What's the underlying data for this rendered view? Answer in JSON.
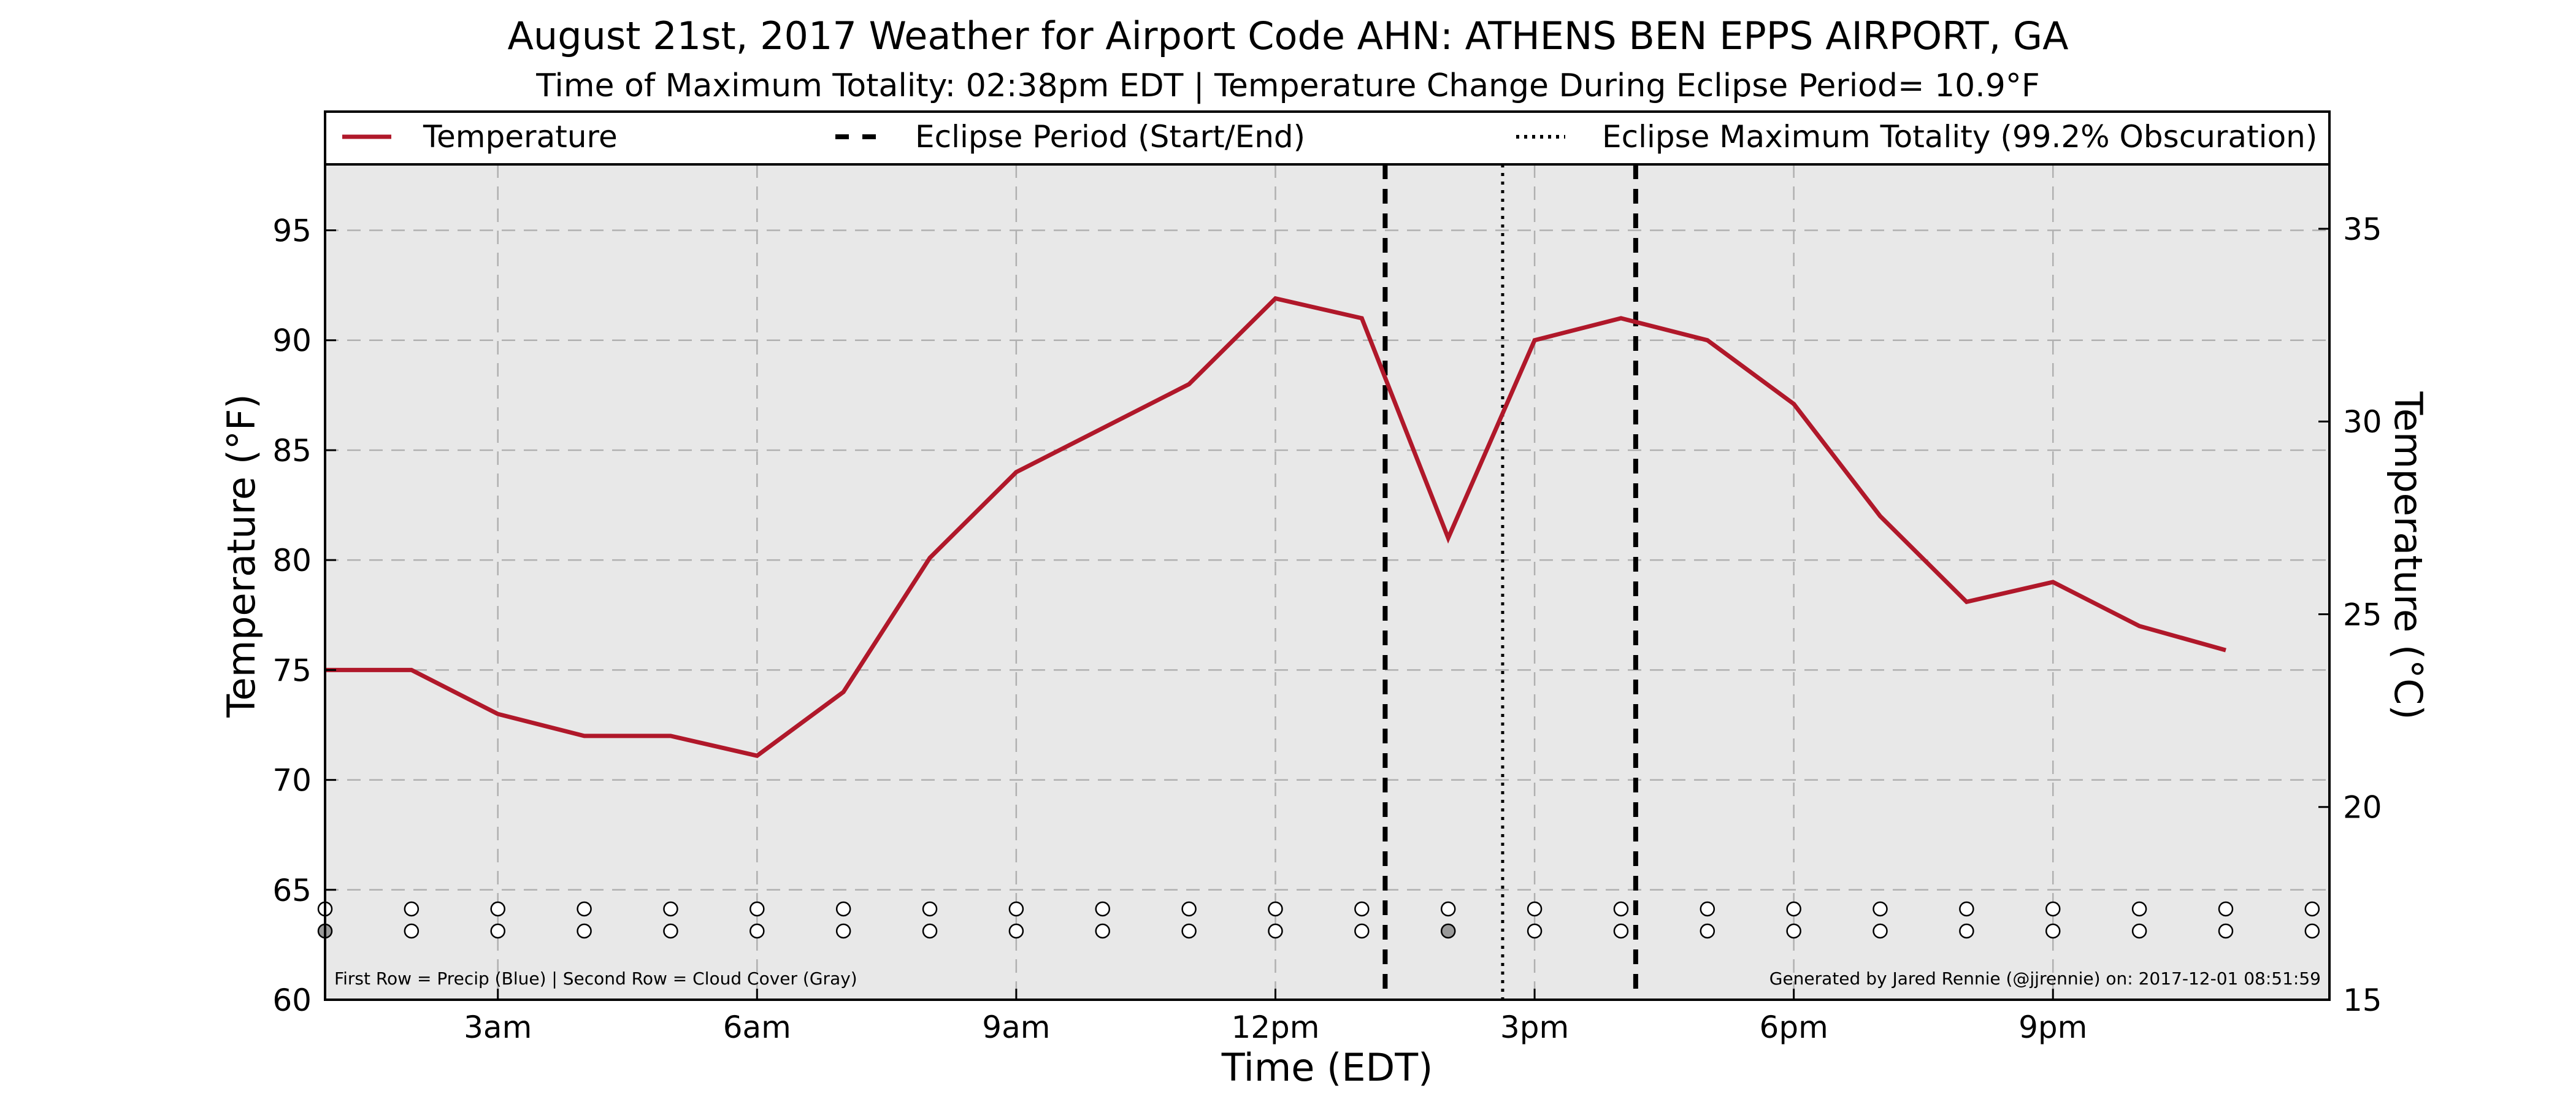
{
  "title": "August 21st, 2017 Weather for Airport Code AHN: ATHENS BEN EPPS AIRPORT, GA",
  "subtitle": "Time of Maximum Totality: 02:38pm EDT | Temperature Change During Eclipse Period= 10.9°F",
  "legend": {
    "temperature": "Temperature",
    "eclipse_period": "Eclipse Period (Start/End)",
    "eclipse_max": "Eclipse Maximum Totality (99.2% Obscuration)"
  },
  "footnote_left": "First Row = Precip (Blue) | Second Row = Cloud Cover (Gray)",
  "footnote_right": "Generated by Jared Rennie (@jjrennie) on: 2017-12-01 08:51:59",
  "colors": {
    "temperature_line": "#b0182a",
    "plot_background": "#e8e8e8",
    "grid": "#b0b0b0",
    "cloud_filled": "#999999",
    "marker_empty": "#ffffff"
  },
  "chart_data": {
    "type": "line",
    "title": "August 21st, 2017 Weather for Airport Code AHN: ATHENS BEN EPPS AIRPORT, GA",
    "xlabel": "Time (EDT)",
    "ylabel": "Temperature (°F)",
    "ylabel_right": "Temperature (°C)",
    "xlim": [
      1.0,
      24.2
    ],
    "ylim": [
      60,
      98
    ],
    "ylim_right": [
      15,
      36.67
    ],
    "x_ticks": [
      3,
      6,
      9,
      12,
      15,
      18,
      21
    ],
    "x_tick_labels": [
      "3am",
      "6am",
      "9am",
      "12pm",
      "3pm",
      "6pm",
      "9pm"
    ],
    "y_ticks": [
      60,
      65,
      70,
      75,
      80,
      85,
      90,
      95
    ],
    "y_ticks_right": [
      15,
      20,
      25,
      30,
      35
    ],
    "grid": true,
    "legend_position": "top",
    "series": [
      {
        "name": "Temperature",
        "x": [
          1.0,
          2.0,
          3.0,
          4.0,
          5.0,
          6.0,
          7.0,
          8.0,
          9.0,
          10.0,
          11.0,
          12.0,
          13.0,
          14.0,
          15.0,
          16.0,
          17.0,
          18.0,
          19.0,
          20.0,
          21.0,
          22.0,
          23.0,
          24.0
        ],
        "values": [
          75,
          75,
          73,
          72,
          72,
          71.1,
          74,
          80.1,
          84,
          86,
          88,
          91.9,
          91,
          81,
          90,
          91,
          90,
          87.1,
          82,
          78.1,
          79,
          77,
          75.9,
          null
        ]
      }
    ],
    "eclipse_start": 13.27,
    "eclipse_end": 16.17,
    "eclipse_max": 14.63,
    "marker_rows": {
      "x": [
        1,
        2,
        3,
        4,
        5,
        6,
        7,
        8,
        9,
        10,
        11,
        12,
        13,
        14,
        15,
        16,
        17,
        18,
        19,
        20,
        21,
        22,
        23,
        24
      ],
      "precip": [
        0,
        0,
        0,
        0,
        0,
        0,
        0,
        0,
        0,
        0,
        0,
        0,
        0,
        0,
        0,
        0,
        0,
        0,
        0,
        0,
        0,
        0,
        0,
        0
      ],
      "cloud_cover": [
        1,
        0,
        0,
        0,
        0,
        0,
        0,
        0,
        0,
        0,
        0,
        0,
        0,
        1,
        0,
        0,
        0,
        0,
        0,
        0,
        0,
        0,
        0,
        0
      ]
    }
  }
}
